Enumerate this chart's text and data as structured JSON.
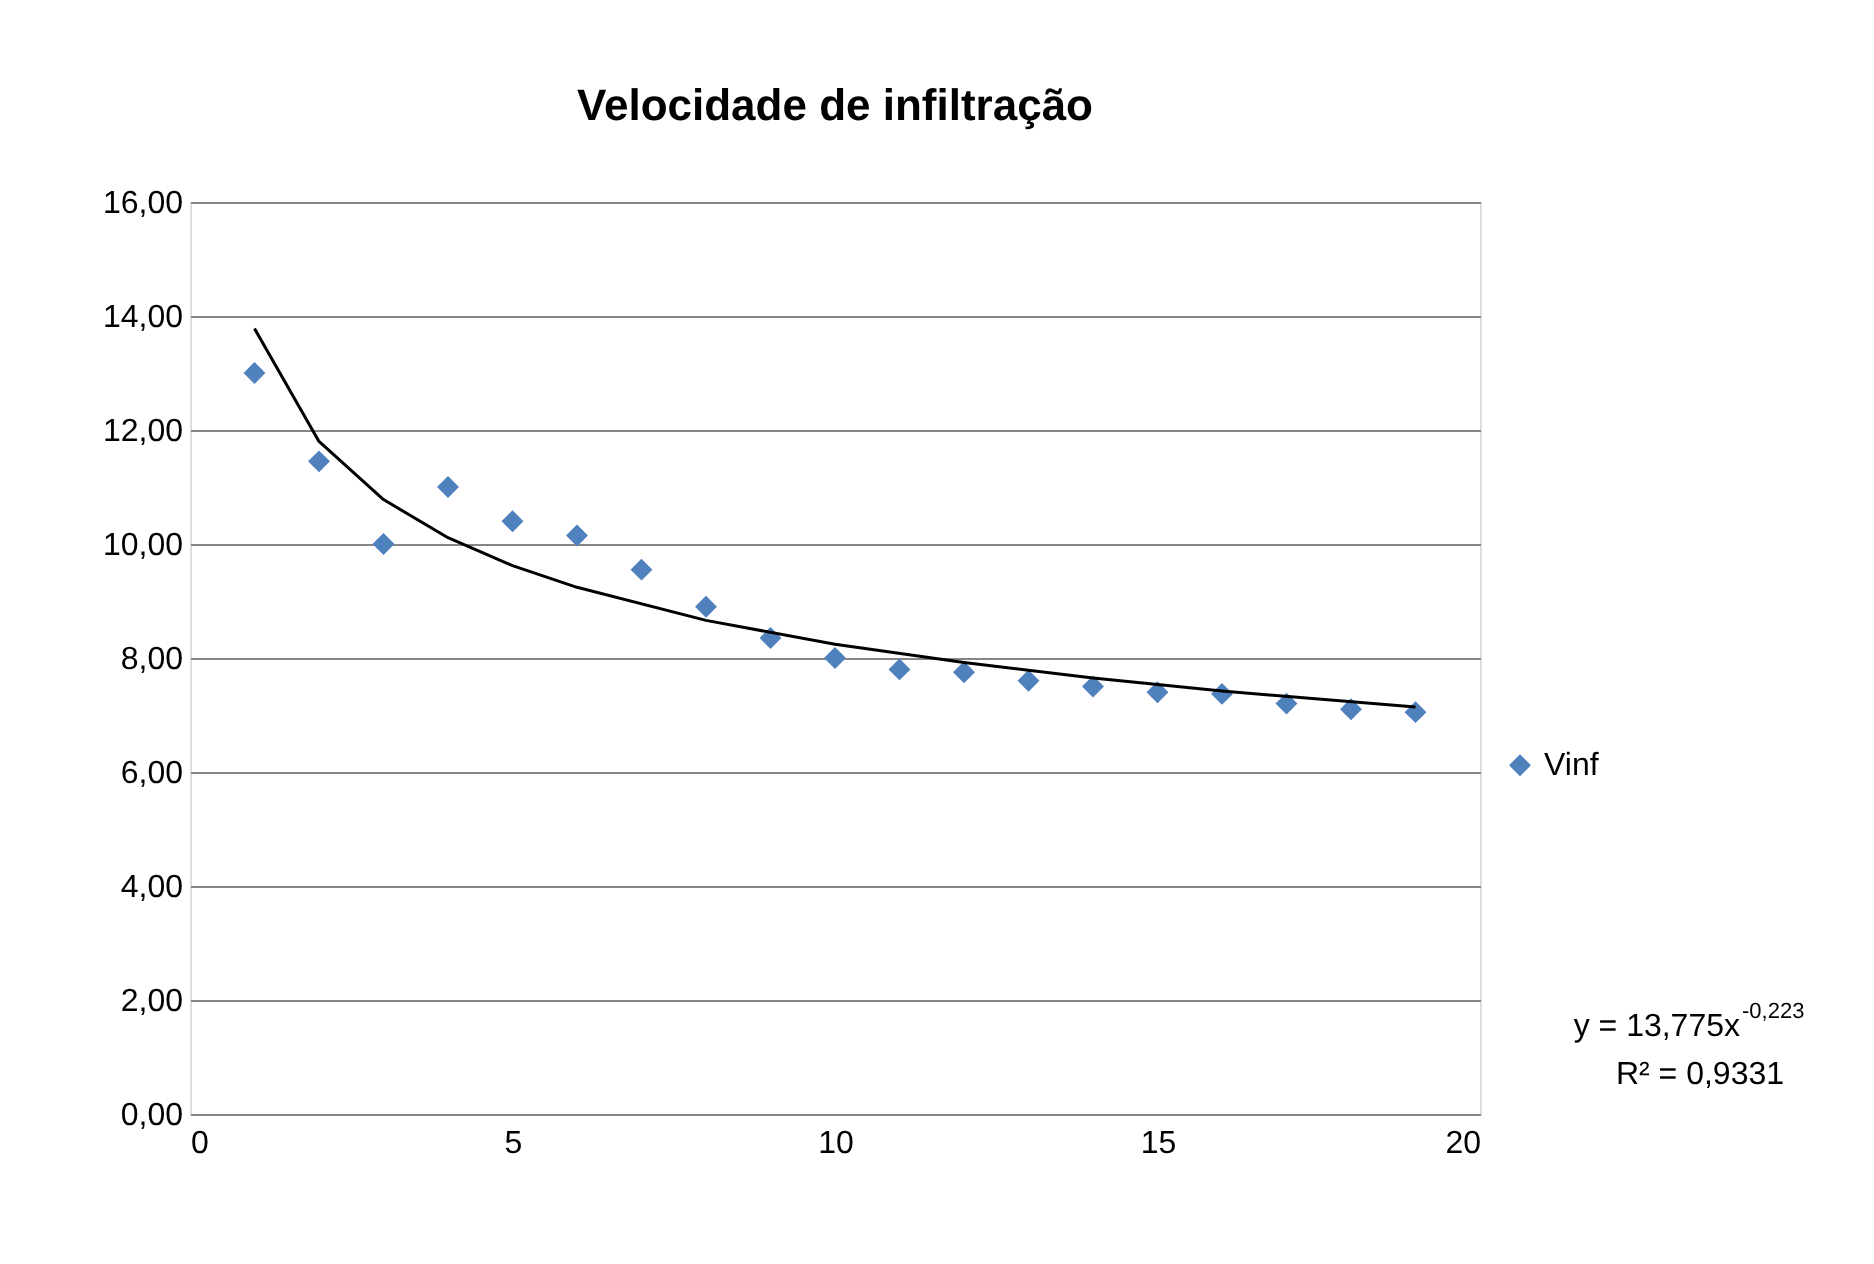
{
  "chart_data": {
    "type": "scatter",
    "title": "Velocidade de infiltração",
    "x": [
      1,
      2,
      3,
      4,
      5,
      6,
      7,
      8,
      9,
      10,
      11,
      12,
      13,
      14,
      15,
      16,
      17,
      18,
      19
    ],
    "series": [
      {
        "name": "Vinf",
        "color": "#4f81bd",
        "marker": "diamond",
        "values": [
          13.0,
          11.45,
          10.0,
          11.0,
          10.4,
          10.15,
          9.55,
          8.9,
          8.35,
          8.0,
          7.8,
          7.75,
          7.6,
          7.5,
          7.4,
          7.37,
          7.2,
          7.1,
          7.05
        ]
      },
      {
        "type": "line",
        "color": "#000000",
        "marker": "none",
        "line_style": "solid",
        "x": [
          1,
          2,
          3,
          4,
          5,
          6,
          8,
          10,
          12,
          14,
          16,
          19
        ],
        "values": [
          13.78,
          11.8,
          10.78,
          10.11,
          9.62,
          9.24,
          8.66,
          8.24,
          7.92,
          7.65,
          7.42,
          7.14
        ]
      }
    ],
    "xlim": [
      0,
      20
    ],
    "xticks": [
      0,
      5,
      10,
      15,
      20
    ],
    "ylim": [
      0,
      16
    ],
    "yticks": [
      {
        "value": 0,
        "label": "0,00"
      },
      {
        "value": 2,
        "label": "2,00"
      },
      {
        "value": 4,
        "label": "4,00"
      },
      {
        "value": 6,
        "label": "6,00"
      },
      {
        "value": 8,
        "label": "8,00"
      },
      {
        "value": 10,
        "label": "10,00"
      },
      {
        "value": 12,
        "label": "12,00"
      },
      {
        "value": 14,
        "label": "14,00"
      },
      {
        "value": 16,
        "label": "16,00"
      }
    ],
    "grid": "y",
    "legend": "right",
    "annotations": [
      "y = 13,775x$^{-0,223}$",
      "R² = 0,9331"
    ]
  }
}
